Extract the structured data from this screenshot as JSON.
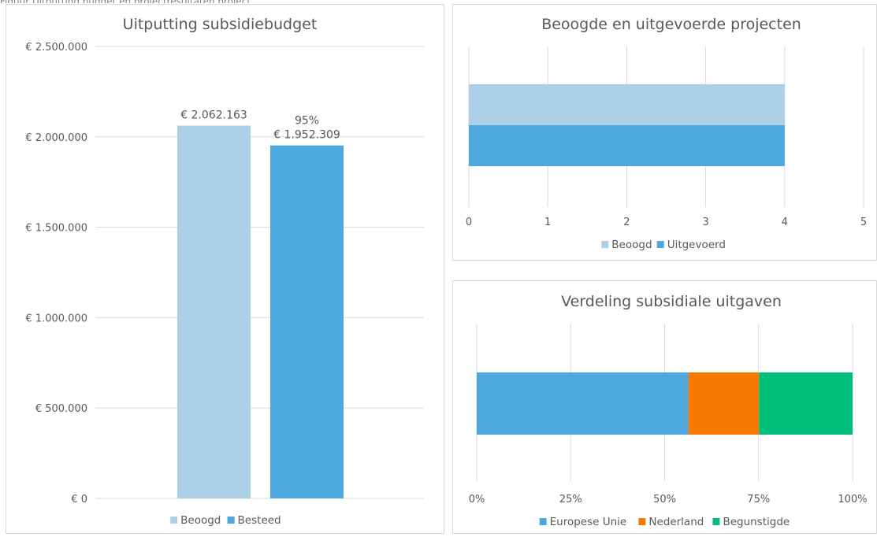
{
  "chart_data": [
    {
      "type": "bar",
      "title": "Uitputting subsidiebudget",
      "categories": [
        "Beoogd",
        "Besteed"
      ],
      "values": [
        2062163,
        1952309
      ],
      "value_labels": [
        "€ 2.062.163",
        "€ 1.952.309"
      ],
      "extra_label": "95%",
      "ylim": [
        0,
        2500000
      ],
      "yticks": [
        0,
        500000,
        1000000,
        1500000,
        2000000,
        2500000
      ],
      "ytick_labels": [
        "€ 0",
        "€ 500.000",
        "€ 1.000.000",
        "€ 1.500.000",
        "€ 2.000.000",
        "€ 2.500.000"
      ],
      "colors": [
        "#acd0e8",
        "#4ca8de"
      ],
      "legend": [
        "Beoogd",
        "Besteed"
      ],
      "legend_position": "bottom",
      "grid": true
    },
    {
      "type": "bar",
      "orientation": "horizontal",
      "title": "Beoogde en uitgevoerde projecten",
      "series": [
        {
          "name": "Beoogd",
          "values": [
            4
          ]
        },
        {
          "name": "Uitgevoerd",
          "values": [
            4
          ]
        }
      ],
      "xlim": [
        0,
        5
      ],
      "xticks": [
        0,
        1,
        2,
        3,
        4,
        5
      ],
      "xtick_labels": [
        "0",
        "1",
        "2",
        "3",
        "4",
        "5"
      ],
      "colors": [
        "#acd0e8",
        "#4ca8de"
      ],
      "legend_position": "bottom",
      "grid": true
    },
    {
      "type": "bar",
      "orientation": "horizontal",
      "stacked": "percent",
      "title": "Verdeling subsidiale uitgaven",
      "series": [
        {
          "name": "Europese Unie",
          "values": [
            56.3
          ]
        },
        {
          "name": "Nederland",
          "values": [
            18.8
          ]
        },
        {
          "name": "Begunstigde",
          "values": [
            24.9
          ]
        }
      ],
      "xlim": [
        0,
        100
      ],
      "xticks": [
        0,
        25,
        50,
        75,
        100
      ],
      "xtick_labels": [
        "0%",
        "25%",
        "50%",
        "75%",
        "100%"
      ],
      "colors": [
        "#4ca8de",
        "#f57b00",
        "#00bf7a"
      ],
      "legend_position": "bottom",
      "grid": true
    }
  ],
  "caption_partial": "Figuur Uitputting budget en projectresultaten project"
}
